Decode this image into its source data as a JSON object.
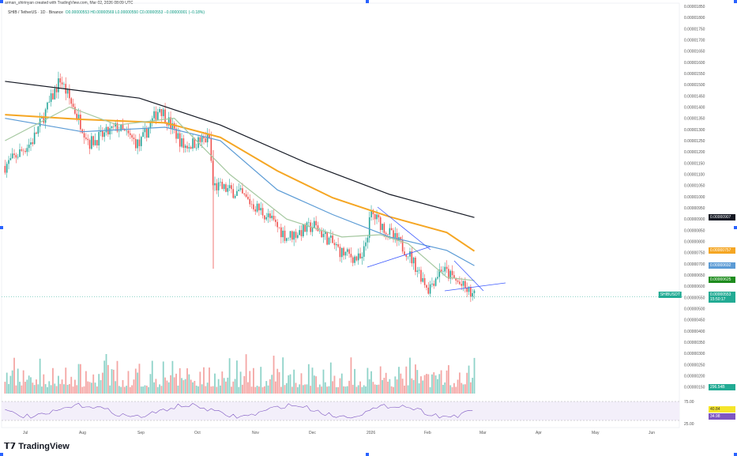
{
  "header": {
    "credit": "arman_shirinyan created with TradingView.com, Mar 02, 2026 08:09 UTC",
    "symbol": "SHIB / TetherUS · 1D · Binance",
    "open": "O0.00000553",
    "high": "H0.00000569",
    "low": "L0.00000550",
    "close": "C0.00000553",
    "change": "−0.00000001 (−0.18%)"
  },
  "footer": {
    "logo": "TradingView"
  },
  "chart_data": {
    "type": "candlestick",
    "price_ticks": [
      "0.00001850",
      "0.00001800",
      "0.00001750",
      "0.00001700",
      "0.00001650",
      "0.00001600",
      "0.00001550",
      "0.00001500",
      "0.00001450",
      "0.00001400",
      "0.00001350",
      "0.00001300",
      "0.00001250",
      "0.00001200",
      "0.00001150",
      "0.00001100",
      "0.00001050",
      "0.00001000",
      "0.00000950",
      "0.00000900",
      "0.00000850",
      "0.00000800",
      "0.00000750",
      "0.00000700",
      "0.00000650",
      "0.00000600",
      "0.00000550",
      "0.00000500",
      "0.00000450",
      "0.00000400",
      "0.00000350",
      "0.00000300",
      "0.00000250",
      "0.00000200",
      "0.00000150"
    ],
    "time_ticks": [
      "Jul",
      "Aug",
      "Sep",
      "Oct",
      "Nov",
      "Dec",
      "2026",
      "Feb",
      "Mar",
      "Apr",
      "May",
      "Jun"
    ],
    "close_path_e8": [
      [
        "2025-06-20",
        1137
      ],
      [
        "2025-07-05",
        1250
      ],
      [
        "2025-07-20",
        1525
      ],
      [
        "2025-08-05",
        1240
      ],
      [
        "2025-08-20",
        1310
      ],
      [
        "2025-09-01",
        1230
      ],
      [
        "2025-09-12",
        1400
      ],
      [
        "2025-09-25",
        1225
      ],
      [
        "2025-10-09",
        1260
      ],
      [
        "2025-10-11",
        1050
      ],
      [
        "2025-10-25",
        1015
      ],
      [
        "2025-11-10",
        910
      ],
      [
        "2025-11-20",
        820
      ],
      [
        "2025-12-05",
        870
      ],
      [
        "2025-12-20",
        750
      ],
      [
        "2025-12-31",
        715
      ],
      [
        "2026-01-05",
        925
      ],
      [
        "2026-01-15",
        835
      ],
      [
        "2026-01-25",
        750
      ],
      [
        "2026-02-05",
        590
      ],
      [
        "2026-02-12",
        680
      ],
      [
        "2026-03-02",
        553
      ]
    ],
    "ma_lines_e8": [
      {
        "color": "#131722",
        "points": [
          [
            "2025-06-20",
            1515
          ],
          [
            "2025-09-01",
            1440
          ],
          [
            "2025-10-15",
            1320
          ],
          [
            "2025-12-01",
            1150
          ],
          [
            "2026-01-15",
            1010
          ],
          [
            "2026-03-02",
            907
          ]
        ]
      },
      {
        "color": "#f5a623",
        "points": [
          [
            "2025-06-20",
            1366
          ],
          [
            "2025-08-01",
            1345
          ],
          [
            "2025-09-15",
            1330
          ],
          [
            "2025-10-15",
            1265
          ],
          [
            "2025-11-15",
            1115
          ],
          [
            "2025-12-15",
            995
          ],
          [
            "2026-01-15",
            910
          ],
          [
            "2026-02-15",
            840
          ],
          [
            "2026-03-02",
            757
          ]
        ]
      },
      {
        "color": "#5b9bd5",
        "points": [
          [
            "2025-06-20",
            1350
          ],
          [
            "2025-08-01",
            1290
          ],
          [
            "2025-09-15",
            1310
          ],
          [
            "2025-10-15",
            1250
          ],
          [
            "2025-11-15",
            1030
          ],
          [
            "2025-12-15",
            920
          ],
          [
            "2026-01-15",
            820
          ],
          [
            "2026-02-15",
            760
          ],
          [
            "2026-03-02",
            692
          ]
        ]
      },
      {
        "color": "#a5c8a0",
        "points": [
          [
            "2025-06-20",
            1250
          ],
          [
            "2025-07-25",
            1400
          ],
          [
            "2025-08-20",
            1320
          ],
          [
            "2025-09-20",
            1350
          ],
          [
            "2025-10-20",
            1100
          ],
          [
            "2025-11-20",
            900
          ],
          [
            "2025-12-20",
            820
          ],
          [
            "2026-01-10",
            830
          ],
          [
            "2026-01-25",
            790
          ],
          [
            "2026-02-15",
            640
          ],
          [
            "2026-03-02",
            625
          ]
        ]
      }
    ],
    "price_labels": [
      {
        "text": "0.00000907",
        "color": "#131722"
      },
      {
        "text": "0.00000757",
        "color": "#f5a623"
      },
      {
        "text": "0.00000692",
        "color": "#5b9bd5"
      },
      {
        "text": "0.00000625",
        "color": "#1e8c1e"
      },
      {
        "symbol": "SHIBUSDT",
        "text": "0.00000553",
        "countdown": "15:50:17",
        "color": "#22ab94"
      }
    ],
    "volume_label": "296.54B",
    "rsi": {
      "ticks": [
        "75.00",
        "25.00"
      ],
      "values": [
        "40.84",
        "34.98"
      ]
    }
  }
}
